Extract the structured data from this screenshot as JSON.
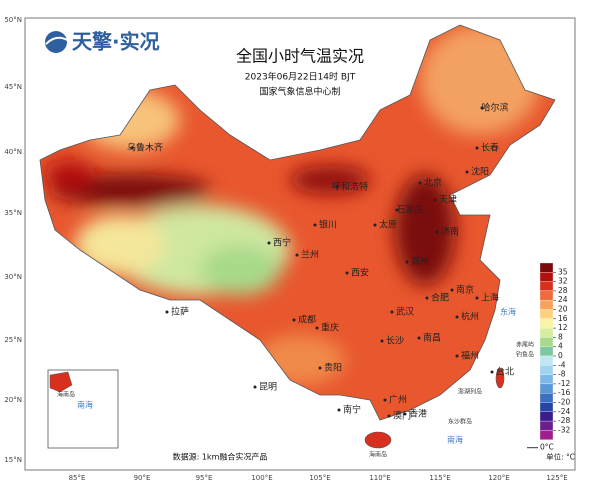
{
  "header": {
    "logo": "天擎·实况",
    "title": "全国小时气温实况",
    "time": "2023年06月22日14时 BJT",
    "producer": "国家气象信息中心制"
  },
  "axes": {
    "lat_labels": [
      "50°N",
      "45°N",
      "40°N",
      "35°N",
      "30°N",
      "25°N",
      "20°N",
      "15°N"
    ],
    "lon_labels": [
      "85°E",
      "90°E",
      "95°E",
      "100°E",
      "105°E",
      "110°E",
      "115°E",
      "120°E",
      "125°E"
    ]
  },
  "cities": [
    "乌鲁木齐",
    "哈尔滨",
    "长春",
    "沈阳",
    "呼和浩特",
    "北京",
    "天津",
    "石家庄",
    "太原",
    "济南",
    "银川",
    "西宁",
    "兰州",
    "郑州",
    "西安",
    "南京",
    "合肥",
    "上海",
    "成都",
    "武汉",
    "杭州",
    "重庆",
    "长沙",
    "南昌",
    "拉萨",
    "贵阳",
    "福州",
    "昆明",
    "台北",
    "南宁",
    "广州",
    "香港",
    "澳门"
  ],
  "seas": [
    "东海",
    "南海",
    "南海"
  ],
  "islands": [
    "赤尾屿",
    "钓鱼岛",
    "澎湖列岛",
    "东沙群岛",
    "海南岛",
    "海南岛"
  ],
  "legend": {
    "levels": [
      35,
      32,
      28,
      24,
      20,
      16,
      12,
      8,
      4,
      0,
      -4,
      -8,
      -12,
      -16,
      -20,
      -24,
      -28,
      -32
    ],
    "colors": [
      "#7a0a0a",
      "#b3110f",
      "#d7301f",
      "#ef6a3c",
      "#f7a35c",
      "#fcd27e",
      "#f9f3a7",
      "#d7eea0",
      "#a8d98b",
      "#7dc8a0",
      "#bfe6f2",
      "#9fd3ee",
      "#7db8e8",
      "#5b98d8",
      "#3a70c0",
      "#2446a0",
      "#3b1c8c",
      "#6b1f8c",
      "#a01f8f"
    ],
    "zero_label": "0°C",
    "unit_label": "单位: °C"
  },
  "source": "数据源: 1km融合实况产品"
}
